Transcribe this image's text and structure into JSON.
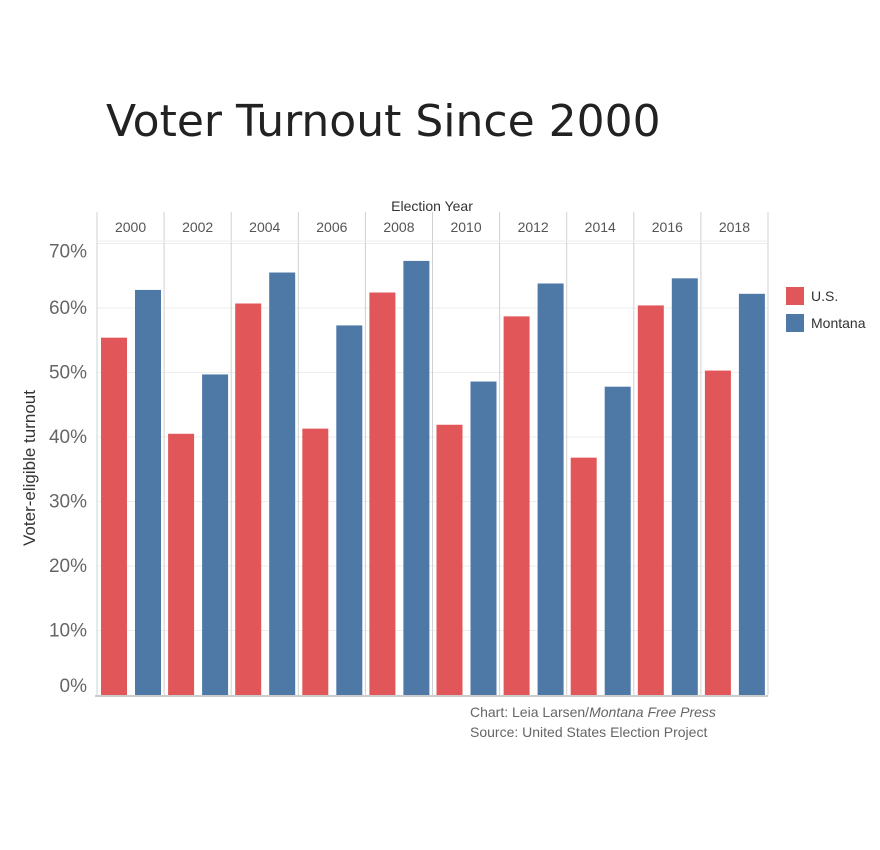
{
  "title": "Voter Turnout Since 2000",
  "chart_data": {
    "type": "bar",
    "title": "Voter Turnout Since 2000",
    "xlabel": "Election Year",
    "ylabel": "Voter-eligible turnout",
    "ylim": [
      0,
      70
    ],
    "yticks": [
      "0%",
      "10%",
      "20%",
      "30%",
      "40%",
      "50%",
      "60%",
      "70%"
    ],
    "categories": [
      "2000",
      "2002",
      "2004",
      "2006",
      "2008",
      "2010",
      "2012",
      "2014",
      "2016",
      "2018"
    ],
    "series": [
      {
        "name": "U.S.",
        "color": "#e15759",
        "values": [
          55.4,
          40.5,
          60.7,
          41.3,
          62.4,
          41.9,
          58.7,
          36.8,
          60.4,
          50.3
        ]
      },
      {
        "name": "Montana",
        "color": "#4e79a7",
        "values": [
          62.8,
          49.7,
          65.5,
          57.3,
          67.3,
          48.6,
          63.8,
          47.8,
          64.6,
          62.2
        ]
      }
    ],
    "grid": true,
    "legend": "right"
  },
  "credits": {
    "chart_prefix": "Chart: Leia Larsen/",
    "chart_outlet": "Montana Free Press",
    "source": "Source: United States Election Project"
  }
}
